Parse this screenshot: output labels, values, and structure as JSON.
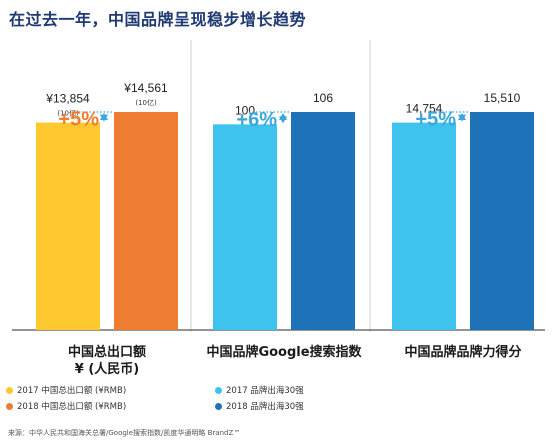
{
  "title": "在过去一年，中国品牌呈现稳步增长趋势",
  "source": "来源：中华人民共和国海关总署/Google搜索指数/凯度华通明略 BrandZ™",
  "colors": {
    "c2017a": "#ffc82e",
    "c2018a": "#ee7d31",
    "c2017b": "#3ec3ee",
    "c2018b": "#1e72b8",
    "growth": "#3aa6dc",
    "axis": "#555555",
    "title": "#1f3a73"
  },
  "legend": [
    {
      "label": "2017 中国总出口额 (¥RMB)",
      "color": "#ffc82e"
    },
    {
      "label": "2018 中国总出口额 (¥RMB)",
      "color": "#ee7d31"
    },
    {
      "label": "2017 品牌出海30强",
      "color": "#3ec3ee"
    },
    {
      "label": "2018 品牌出海30强",
      "color": "#1e72b8"
    }
  ],
  "chart_data": {
    "type": "bar",
    "groups": [
      {
        "category_lines": [
          "中国总出口额",
          "¥ (人民币)"
        ],
        "values": [
          13854,
          14561
        ],
        "value_labels": [
          "¥13,854",
          "¥14,561"
        ],
        "sub_labels": [
          "(10亿)",
          "(10亿)"
        ],
        "growth": "+5%",
        "colors": [
          "#ffc82e",
          "#ee7d31"
        ],
        "scale_max": 14561
      },
      {
        "category_lines": [
          "中国品牌Google搜索指数"
        ],
        "values": [
          100,
          106
        ],
        "value_labels": [
          "100",
          "106"
        ],
        "sub_labels": [
          "",
          ""
        ],
        "growth": "+6%",
        "colors": [
          "#3ec3ee",
          "#1e72b8"
        ],
        "scale_max": 106
      },
      {
        "category_lines": [
          "中国品牌品牌力得分"
        ],
        "values": [
          14754,
          15510
        ],
        "value_labels": [
          "14,754",
          "15,510"
        ],
        "sub_labels": [
          "",
          ""
        ],
        "growth": "+5%",
        "colors": [
          "#3ec3ee",
          "#1e72b8"
        ],
        "scale_max": 15510
      }
    ]
  }
}
